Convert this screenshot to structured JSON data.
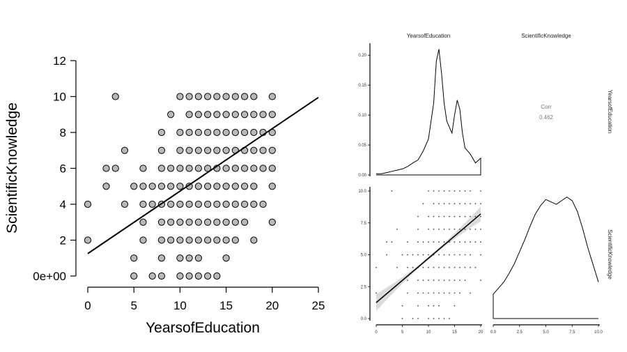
{
  "chart_data": [
    {
      "type": "scatter",
      "xlabel": "YearsofEducation",
      "ylabel": "ScientificKnowledge",
      "xlim": [
        0,
        25
      ],
      "ylim": [
        0,
        12
      ],
      "x_ticks": [
        "0",
        "5",
        "10",
        "15",
        "20",
        "25"
      ],
      "y_ticks": [
        "0e+00",
        "2",
        "4",
        "6",
        "8",
        "10",
        "12"
      ],
      "points": [
        [
          3,
          10
        ],
        [
          10,
          10
        ],
        [
          11,
          10
        ],
        [
          12,
          10
        ],
        [
          13,
          10
        ],
        [
          14,
          10
        ],
        [
          15,
          10
        ],
        [
          16,
          10
        ],
        [
          17,
          10
        ],
        [
          18,
          10
        ],
        [
          20,
          10
        ],
        [
          9,
          9
        ],
        [
          11,
          9
        ],
        [
          12,
          9
        ],
        [
          13,
          9
        ],
        [
          14,
          9
        ],
        [
          15,
          9
        ],
        [
          16,
          9
        ],
        [
          17,
          9
        ],
        [
          18,
          9
        ],
        [
          19,
          9
        ],
        [
          20,
          9
        ],
        [
          8,
          8
        ],
        [
          10,
          8
        ],
        [
          11,
          8
        ],
        [
          12,
          8
        ],
        [
          13,
          8
        ],
        [
          14,
          8
        ],
        [
          15,
          8
        ],
        [
          16,
          8
        ],
        [
          17,
          8
        ],
        [
          18,
          8
        ],
        [
          19,
          8
        ],
        [
          20,
          8
        ],
        [
          4,
          7
        ],
        [
          8,
          7
        ],
        [
          10,
          7
        ],
        [
          11,
          7
        ],
        [
          12,
          7
        ],
        [
          13,
          7
        ],
        [
          14,
          7
        ],
        [
          15,
          7
        ],
        [
          16,
          7
        ],
        [
          17,
          7
        ],
        [
          18,
          7
        ],
        [
          19,
          7
        ],
        [
          20,
          7
        ],
        [
          2,
          6
        ],
        [
          3,
          6
        ],
        [
          6,
          6
        ],
        [
          8,
          6
        ],
        [
          9,
          6
        ],
        [
          10,
          6
        ],
        [
          11,
          6
        ],
        [
          12,
          6
        ],
        [
          13,
          6
        ],
        [
          14,
          6
        ],
        [
          15,
          6
        ],
        [
          16,
          6
        ],
        [
          17,
          6
        ],
        [
          18,
          6
        ],
        [
          19,
          6
        ],
        [
          20,
          6
        ],
        [
          2,
          5
        ],
        [
          5,
          5
        ],
        [
          6,
          5
        ],
        [
          7,
          5
        ],
        [
          8,
          5
        ],
        [
          9,
          5
        ],
        [
          10,
          5
        ],
        [
          11,
          5
        ],
        [
          12,
          5
        ],
        [
          13,
          5
        ],
        [
          14,
          5
        ],
        [
          15,
          5
        ],
        [
          16,
          5
        ],
        [
          17,
          5
        ],
        [
          18,
          5
        ],
        [
          20,
          5
        ],
        [
          0,
          4
        ],
        [
          4,
          4
        ],
        [
          6,
          4
        ],
        [
          7,
          4
        ],
        [
          8,
          4
        ],
        [
          9,
          4
        ],
        [
          10,
          4
        ],
        [
          11,
          4
        ],
        [
          12,
          4
        ],
        [
          13,
          4
        ],
        [
          14,
          4
        ],
        [
          15,
          4
        ],
        [
          16,
          4
        ],
        [
          17,
          4
        ],
        [
          18,
          4
        ],
        [
          19,
          4
        ],
        [
          6,
          3
        ],
        [
          8,
          3
        ],
        [
          9,
          3
        ],
        [
          10,
          3
        ],
        [
          11,
          3
        ],
        [
          12,
          3
        ],
        [
          13,
          3
        ],
        [
          14,
          3
        ],
        [
          15,
          3
        ],
        [
          16,
          3
        ],
        [
          17,
          3
        ],
        [
          20,
          3
        ],
        [
          0,
          2
        ],
        [
          6,
          2
        ],
        [
          8,
          2
        ],
        [
          9,
          2
        ],
        [
          10,
          2
        ],
        [
          11,
          2
        ],
        [
          12,
          2
        ],
        [
          13,
          2
        ],
        [
          14,
          2
        ],
        [
          15,
          2
        ],
        [
          16,
          2
        ],
        [
          18,
          2
        ],
        [
          5,
          1
        ],
        [
          8,
          1
        ],
        [
          10,
          1
        ],
        [
          11,
          1
        ],
        [
          12,
          1
        ],
        [
          15,
          1
        ],
        [
          5,
          0
        ],
        [
          7,
          0
        ],
        [
          8,
          0
        ],
        [
          10,
          0
        ],
        [
          11,
          0
        ],
        [
          12,
          0
        ],
        [
          13,
          0
        ],
        [
          14,
          0
        ]
      ],
      "trendline": {
        "x": [
          0,
          25
        ],
        "y": [
          1.25,
          9.95
        ]
      },
      "marker_color": "#b8b8b8"
    },
    {
      "type": "pairs",
      "variables": [
        "YearsofEducation",
        "ScientificKnowledge"
      ],
      "correlation": {
        "label": "Corr",
        "value": "0.462"
      },
      "density_education": {
        "x": [
          0,
          1,
          2,
          3,
          4,
          5,
          6,
          7,
          8,
          9,
          10,
          11,
          11.5,
          12,
          12.5,
          13,
          13.5,
          14,
          14.5,
          15,
          15.5,
          16,
          16.5,
          17,
          18,
          19,
          20
        ],
        "y": [
          0.002,
          0.002,
          0.004,
          0.006,
          0.008,
          0.01,
          0.014,
          0.02,
          0.025,
          0.04,
          0.06,
          0.12,
          0.19,
          0.21,
          0.17,
          0.12,
          0.09,
          0.08,
          0.07,
          0.1,
          0.125,
          0.11,
          0.07,
          0.045,
          0.035,
          0.02,
          0.028
        ],
        "xlim": [
          0,
          20
        ],
        "ylim": [
          0,
          0.22
        ],
        "y_ticks": [
          "0.00",
          "0.05",
          "0.10",
          "0.15",
          "0.20"
        ]
      },
      "density_knowledge": {
        "x": [
          0,
          0.5,
          1,
          1.5,
          2,
          2.5,
          3,
          3.5,
          4,
          4.5,
          5,
          5.5,
          6,
          6.5,
          7,
          7.5,
          8,
          8.5,
          9,
          9.5,
          10
        ],
        "y": [
          0.2,
          0.25,
          0.3,
          0.37,
          0.45,
          0.55,
          0.65,
          0.76,
          0.86,
          0.93,
          0.98,
          0.96,
          0.94,
          0.97,
          1.0,
          0.97,
          0.88,
          0.74,
          0.58,
          0.44,
          0.3
        ],
        "xlim": [
          0,
          10
        ],
        "ylim": [
          0,
          1.05
        ],
        "x_ticks": [
          "0.0",
          "2.5",
          "5.0",
          "7.5",
          "10.0"
        ]
      },
      "scatter_panel": {
        "xlim": [
          0,
          20
        ],
        "ylim": [
          0,
          10
        ],
        "x_ticks": [
          "0",
          "5",
          "10",
          "15",
          "20"
        ],
        "y_ticks": [
          "0.0",
          "2.5",
          "5.0",
          "7.5",
          "10.0"
        ],
        "trend": {
          "x": [
            0,
            20
          ],
          "y": [
            1.25,
            8.2
          ]
        },
        "band_halfwidth_ends": [
          0.55,
          0.45
        ]
      }
    }
  ]
}
